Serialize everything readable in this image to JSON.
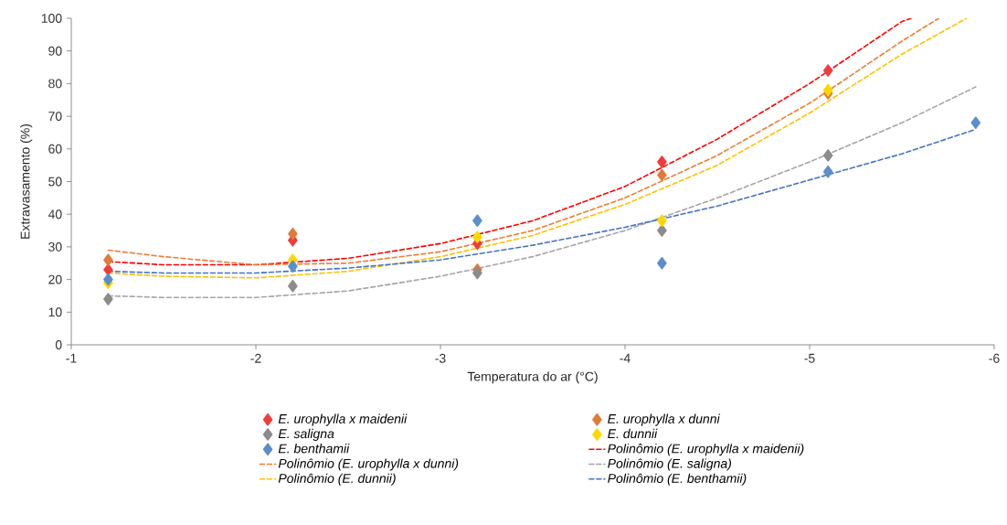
{
  "chart_data": {
    "type": "scatter",
    "xlabel": "Temperatura do ar (°C)",
    "ylabel": "Extravasamento (%)",
    "xlim": [
      -1,
      -6
    ],
    "ylim": [
      0,
      100
    ],
    "xticks": [
      -1,
      -2,
      -3,
      -4,
      -5,
      -6
    ],
    "yticks": [
      0,
      10,
      20,
      30,
      40,
      50,
      60,
      70,
      80,
      90,
      100
    ],
    "marker": "diamond",
    "legend": "bottom",
    "series": [
      {
        "name": "*E. urophylla x maidenii*",
        "color": "#f03c3c",
        "x": [
          -1.2,
          -2.2,
          -3.2,
          -4.2,
          -5.1
        ],
        "values": [
          23,
          32,
          31,
          56,
          84
        ]
      },
      {
        "name": "*E. urophylla x dunni*",
        "color": "#e07b39",
        "x": [
          -1.2,
          -2.2,
          -3.2,
          -4.2,
          -5.1
        ],
        "values": [
          26,
          34,
          23,
          52,
          77
        ]
      },
      {
        "name": "*E. saligna*",
        "color": "#8c8c8c",
        "x": [
          -1.2,
          -2.2,
          -3.2,
          -4.2,
          -5.1
        ],
        "values": [
          14,
          18,
          22,
          35,
          58
        ]
      },
      {
        "name": "*E. dunnii*",
        "color": "#ffd700",
        "x": [
          -1.2,
          -2.2,
          -3.2,
          -4.2,
          -5.1
        ],
        "values": [
          19,
          26,
          33,
          38,
          78
        ]
      },
      {
        "name": "*E. benthamii*",
        "color": "#5b8fc9",
        "x": [
          -1.2,
          -2.2,
          -3.2,
          -4.2,
          -5.1,
          -5.9
        ],
        "values": [
          20,
          24,
          38,
          25,
          53,
          68
        ]
      },
      {
        "name": "*Polinômio (E. urophylla x maidenii)*",
        "type": "line",
        "marker": "none",
        "line_style": "dashed",
        "color": "#ff0000",
        "x": [
          -1.2,
          -1.5,
          -2,
          -2.5,
          -3,
          -3.5,
          -4,
          -4.5,
          -5,
          -5.5,
          -5.55
        ],
        "values": [
          25.5,
          24.5,
          24.5,
          26.5,
          31,
          38,
          48.5,
          63,
          80,
          99,
          100
        ]
      },
      {
        "name": "*Polinômio (E. urophylla x dunni)*",
        "type": "line",
        "marker": "none",
        "line_style": "dashed",
        "color": "#ed7d31",
        "x": [
          -1.2,
          -1.5,
          -2,
          -2.5,
          -3,
          -3.5,
          -4,
          -4.5,
          -5,
          -5.5,
          -5.7
        ],
        "values": [
          29,
          27,
          24.5,
          25,
          28.5,
          35,
          45,
          58,
          74,
          93,
          100
        ]
      },
      {
        "name": "*Polinômio (E. saligna)*",
        "type": "line",
        "marker": "none",
        "line_style": "dashed",
        "color": "#a5a5a5",
        "x": [
          -1.2,
          -1.5,
          -2,
          -2.5,
          -3,
          -3.5,
          -4,
          -4.5,
          -5,
          -5.5,
          -5.9
        ],
        "values": [
          15,
          14.5,
          14.5,
          16.5,
          21,
          27,
          35,
          45,
          56,
          68,
          79
        ]
      },
      {
        "name": "*Polinômio (E. dunnii)*",
        "type": "line",
        "marker": "none",
        "line_style": "dashed",
        "color": "#ffc000",
        "x": [
          -1.2,
          -1.5,
          -2,
          -2.5,
          -3,
          -3.5,
          -4,
          -4.5,
          -5,
          -5.5,
          -5.85
        ],
        "values": [
          22,
          21,
          20.5,
          22.5,
          27,
          33.5,
          43,
          55,
          71,
          89,
          100
        ]
      },
      {
        "name": "*Polinômio (E. benthamii)*",
        "type": "line",
        "marker": "none",
        "line_style": "dashed",
        "color": "#4472c4",
        "x": [
          -1.2,
          -1.5,
          -2,
          -2.5,
          -3,
          -3.5,
          -4,
          -4.5,
          -5,
          -5.5,
          -5.9
        ],
        "values": [
          22.5,
          22,
          22,
          23.5,
          26,
          30.5,
          36,
          42.5,
          50.5,
          58.5,
          66
        ]
      }
    ]
  }
}
